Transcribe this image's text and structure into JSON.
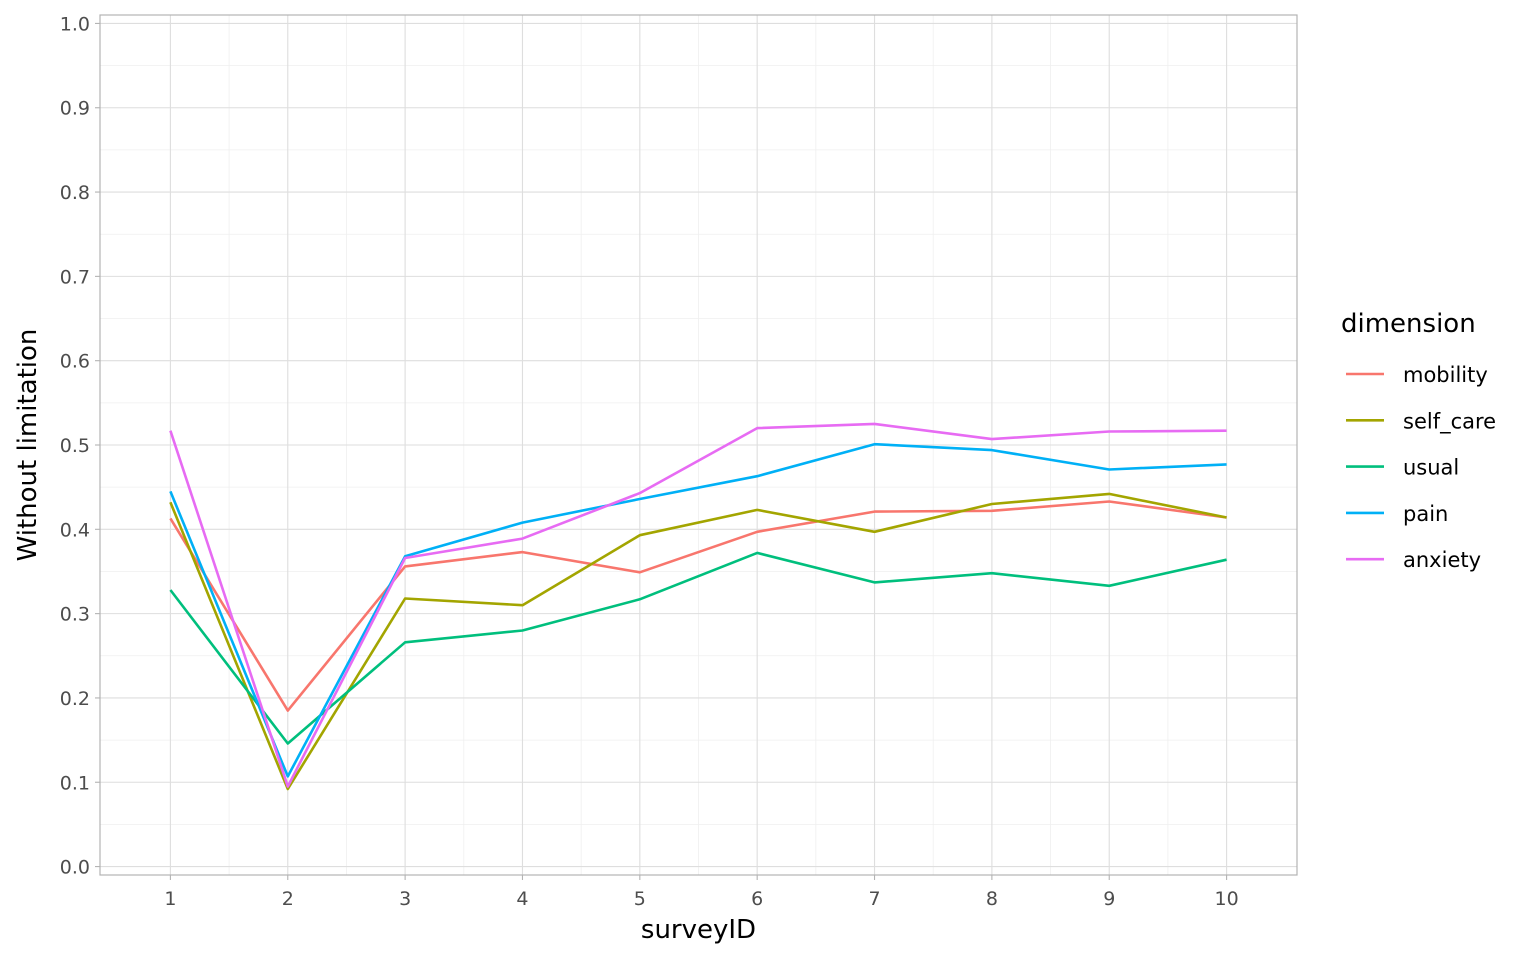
{
  "chart_data": {
    "type": "line",
    "title": "",
    "xlabel": "surveyID",
    "ylabel": "Without limitation",
    "x": [
      1,
      2,
      3,
      4,
      5,
      6,
      7,
      8,
      9,
      10
    ],
    "x_ticks": [
      "1",
      "2",
      "3",
      "4",
      "5",
      "6",
      "7",
      "8",
      "9",
      "10"
    ],
    "y_ticks": [
      "0.0",
      "0.1",
      "0.2",
      "0.3",
      "0.4",
      "0.5",
      "0.6",
      "0.7",
      "0.8",
      "0.9",
      "1.0"
    ],
    "xlim": [
      0.4,
      10.6
    ],
    "ylim": [
      -0.01,
      1.01
    ],
    "grid": true,
    "legend": {
      "title": "dimension",
      "position": "right"
    },
    "series": [
      {
        "name": "mobility",
        "color": "#F8766D",
        "values": [
          0.413,
          0.185,
          0.356,
          0.373,
          0.349,
          0.397,
          0.421,
          0.422,
          0.433,
          0.414
        ]
      },
      {
        "name": "self_care",
        "color": "#A3A500",
        "values": [
          0.432,
          0.092,
          0.318,
          0.31,
          0.393,
          0.423,
          0.397,
          0.43,
          0.442,
          0.414
        ]
      },
      {
        "name": "usual",
        "color": "#00BF7D",
        "values": [
          0.328,
          0.146,
          0.266,
          0.28,
          0.317,
          0.372,
          0.337,
          0.348,
          0.333,
          0.364
        ]
      },
      {
        "name": "pain",
        "color": "#00B0F6",
        "values": [
          0.445,
          0.107,
          0.368,
          0.408,
          0.436,
          0.463,
          0.501,
          0.494,
          0.471,
          0.477
        ]
      },
      {
        "name": "anxiety",
        "color": "#E76BF3",
        "values": [
          0.517,
          0.095,
          0.366,
          0.389,
          0.443,
          0.52,
          0.525,
          0.507,
          0.516,
          0.517
        ]
      }
    ]
  }
}
